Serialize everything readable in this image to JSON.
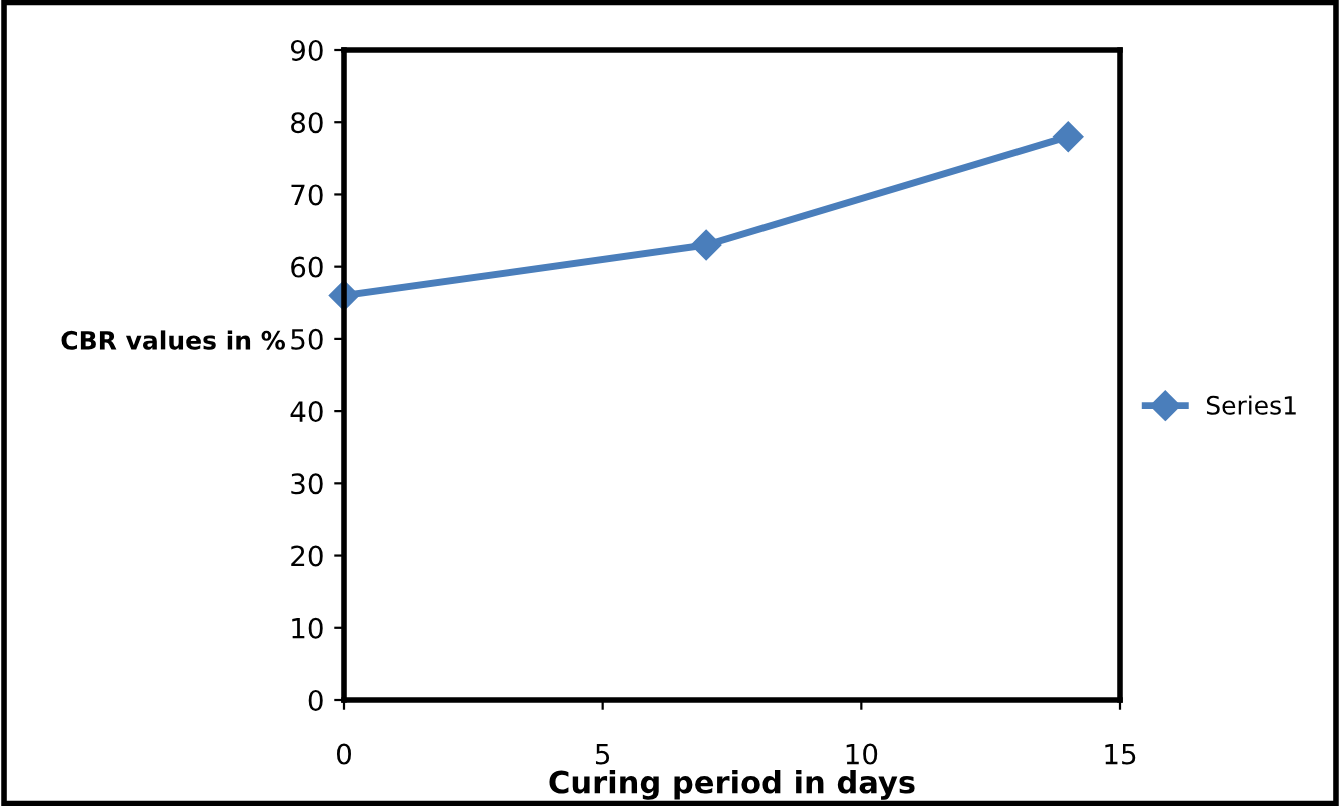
{
  "chart_data": {
    "type": "line",
    "xlabel": "Curing period in days",
    "ylabel": "CBR values in %",
    "x": [
      0,
      7,
      14
    ],
    "series": [
      {
        "name": "Series1",
        "color": "#4a7ebb",
        "values": [
          56,
          63,
          78
        ]
      }
    ],
    "xlim": [
      0,
      15
    ],
    "xticks": [
      0,
      5,
      10,
      15
    ],
    "ylim": [
      0,
      90
    ],
    "yticks": [
      0,
      10,
      20,
      30,
      40,
      50,
      60,
      70,
      80,
      90
    ],
    "grid": false,
    "legend": "right",
    "marker": "diamond",
    "line_style": "solid"
  }
}
